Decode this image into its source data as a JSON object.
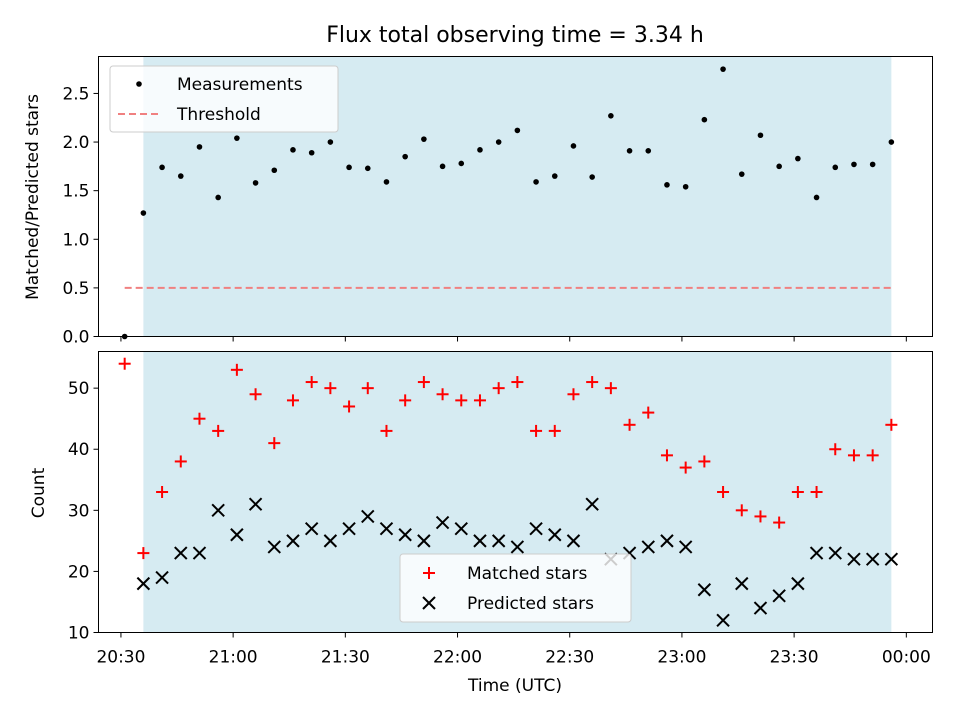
{
  "chart_data": [
    {
      "type": "scatter",
      "title": "Flux total observing time = 3.34 h",
      "xlabel": "",
      "ylabel": "Matched/Predicted stars",
      "ylim": [
        0.0,
        2.88
      ],
      "yticks": [
        0.0,
        0.5,
        1.0,
        1.5,
        2.0,
        2.5
      ],
      "ytick_labels": [
        "0.0",
        "0.5",
        "1.0",
        "1.5",
        "2.0",
        "2.5"
      ],
      "shaded_range": [
        "20:36",
        "23:56"
      ],
      "shade_color": "#add8e6",
      "legend_position": "upper-left",
      "series": [
        {
          "name": "Measurements",
          "marker": "dot",
          "color": "#000000",
          "x": [
            "20:31",
            "20:36",
            "20:41",
            "20:46",
            "20:51",
            "20:56",
            "21:01",
            "21:06",
            "21:11",
            "21:16",
            "21:21",
            "21:26",
            "21:31",
            "21:36",
            "21:41",
            "21:46",
            "21:51",
            "21:56",
            "22:01",
            "22:06",
            "22:11",
            "22:16",
            "22:21",
            "22:26",
            "22:31",
            "22:36",
            "22:41",
            "22:46",
            "22:51",
            "22:56",
            "23:01",
            "23:06",
            "23:11",
            "23:16",
            "23:21",
            "23:26",
            "23:31",
            "23:36",
            "23:41",
            "23:46",
            "23:51",
            "23:56"
          ],
          "y": [
            0.0,
            1.27,
            1.74,
            1.65,
            1.95,
            1.43,
            2.04,
            1.58,
            1.71,
            1.92,
            1.89,
            2.0,
            1.74,
            1.73,
            1.59,
            1.85,
            2.03,
            1.75,
            1.78,
            1.92,
            2.0,
            2.12,
            1.59,
            1.65,
            1.96,
            1.64,
            2.27,
            1.91,
            1.91,
            1.56,
            1.54,
            2.23,
            2.75,
            1.67,
            2.07,
            1.75,
            1.83,
            1.43,
            1.74,
            1.77,
            1.77,
            2.0
          ]
        },
        {
          "name": "Threshold",
          "marker": "dashed-line",
          "color": "#f08080",
          "x": [
            "20:31",
            "23:56"
          ],
          "y": [
            0.5,
            0.5
          ]
        }
      ]
    },
    {
      "type": "scatter",
      "title": "",
      "xlabel": "Time (UTC)",
      "ylabel": "Count",
      "ylim": [
        10,
        56
      ],
      "yticks": [
        10,
        20,
        30,
        40,
        50
      ],
      "ytick_labels": [
        "10",
        "20",
        "30",
        "40",
        "50"
      ],
      "xlim": [
        "20:24",
        "00:07"
      ],
      "xticks": [
        "20:30",
        "21:00",
        "21:30",
        "22:00",
        "22:30",
        "23:00",
        "23:30",
        "00:00"
      ],
      "shaded_range": [
        "20:36",
        "23:56"
      ],
      "shade_color": "#add8e6",
      "legend_position": "lower-center",
      "series": [
        {
          "name": "Matched stars",
          "marker": "plus",
          "color": "#ff0000",
          "x": [
            "20:31",
            "20:36",
            "20:41",
            "20:46",
            "20:51",
            "20:56",
            "21:01",
            "21:06",
            "21:11",
            "21:16",
            "21:21",
            "21:26",
            "21:31",
            "21:36",
            "21:41",
            "21:46",
            "21:51",
            "21:56",
            "22:01",
            "22:06",
            "22:11",
            "22:16",
            "22:21",
            "22:26",
            "22:31",
            "22:36",
            "22:41",
            "22:46",
            "22:51",
            "22:56",
            "23:01",
            "23:06",
            "23:11",
            "23:16",
            "23:21",
            "23:26",
            "23:31",
            "23:36",
            "23:41",
            "23:46",
            "23:51",
            "23:56"
          ],
          "y": [
            54,
            23,
            33,
            38,
            45,
            43,
            53,
            49,
            41,
            48,
            51,
            50,
            47,
            50,
            43,
            48,
            51,
            49,
            48,
            48,
            50,
            51,
            43,
            43,
            49,
            51,
            50,
            44,
            46,
            39,
            37,
            38,
            33,
            30,
            29,
            28,
            33,
            33,
            40,
            39,
            39,
            44
          ]
        },
        {
          "name": "Predicted stars",
          "marker": "x",
          "color": "#000000",
          "x": [
            "20:36",
            "20:41",
            "20:46",
            "20:51",
            "20:56",
            "21:01",
            "21:06",
            "21:11",
            "21:16",
            "21:21",
            "21:26",
            "21:31",
            "21:36",
            "21:41",
            "21:46",
            "21:51",
            "21:56",
            "22:01",
            "22:06",
            "22:11",
            "22:16",
            "22:21",
            "22:26",
            "22:31",
            "22:36",
            "22:41",
            "22:46",
            "22:51",
            "22:56",
            "23:01",
            "23:06",
            "23:11",
            "23:16",
            "23:21",
            "23:26",
            "23:31",
            "23:36",
            "23:41",
            "23:46",
            "23:51",
            "23:56"
          ],
          "y": [
            18,
            19,
            23,
            23,
            30,
            26,
            31,
            24,
            25,
            27,
            25,
            27,
            29,
            27,
            26,
            25,
            28,
            27,
            25,
            25,
            24,
            27,
            26,
            25,
            31,
            22,
            23,
            24,
            25,
            24,
            17,
            12,
            18,
            14,
            16,
            18,
            23,
            23,
            22,
            22,
            22
          ]
        }
      ]
    }
  ]
}
